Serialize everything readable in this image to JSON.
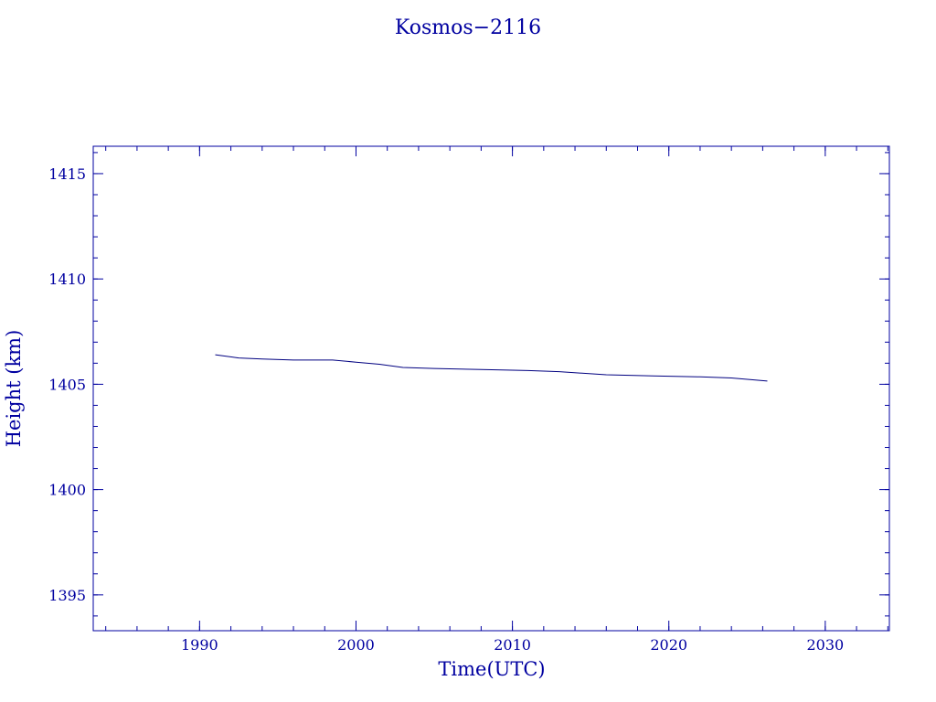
{
  "chart_data": {
    "type": "line",
    "title": "Kosmos−2116",
    "xlabel": "Time(UTC)",
    "ylabel": "Height (km)",
    "xlim": [
      1983.2,
      2034.1
    ],
    "ylim": [
      1393.3,
      1416.3
    ],
    "x_ticks": [
      1990,
      2000,
      2010,
      2020,
      2030
    ],
    "x_tick_labels": [
      "1990",
      "2000",
      "2010",
      "2020",
      "2030"
    ],
    "y_ticks": [
      1395,
      1400,
      1405,
      1410,
      1415
    ],
    "y_tick_labels": [
      "1395",
      "1400",
      "1405",
      "1410",
      "1415"
    ],
    "x_minor_step": 2,
    "y_minor_step": 1,
    "grid": false,
    "line_color": "#000080",
    "axis_color": "#0000a0",
    "series": [
      {
        "x": [
          1991.0,
          1992.5,
          1994.0,
          1996.0,
          1998.5,
          2000.0,
          2001.5,
          2003.0,
          2005.0,
          2008.0,
          2011.0,
          2013.0,
          2016.0,
          2019.0,
          2022.0,
          2024.0,
          2026.3
        ],
        "y": [
          1406.4,
          1406.25,
          1406.2,
          1406.15,
          1406.15,
          1406.05,
          1405.95,
          1405.8,
          1405.75,
          1405.7,
          1405.65,
          1405.6,
          1405.45,
          1405.4,
          1405.35,
          1405.3,
          1405.15
        ]
      }
    ]
  }
}
